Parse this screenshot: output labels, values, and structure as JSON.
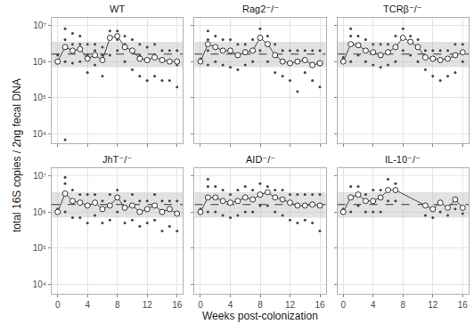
{
  "chart_data": {
    "type": "scatter",
    "log": "y",
    "grid": true,
    "x_label": "Weeks post-colonization",
    "y_label": "total 16S copies / 2ng fecal DNA",
    "xlim": [
      -0.8,
      16.8
    ],
    "xticks": [
      0,
      4,
      8,
      12,
      16
    ],
    "ylim": [
      5600,
      16000000
    ],
    "yticks": [
      {
        "value": 10000,
        "label": "10⁴"
      },
      {
        "value": 100000,
        "label": "10⁵"
      },
      {
        "value": 1000000,
        "label": "10⁶"
      },
      {
        "value": 10000000,
        "label": "10⁷"
      }
    ],
    "band": [
      700000,
      3500000
    ],
    "reference": 1600000,
    "panels": [
      {
        "title": "WT",
        "points": {
          "x": [
            0,
            0,
            1,
            1,
            1,
            1,
            2,
            2,
            2,
            3,
            3,
            3,
            4,
            4,
            4,
            5,
            5,
            5,
            6,
            6,
            6,
            7,
            7,
            7,
            8,
            8,
            8,
            9,
            9,
            9,
            10,
            10,
            10,
            11,
            11,
            11,
            12,
            12,
            12,
            13,
            13,
            13,
            14,
            14,
            14,
            15,
            15,
            15,
            16,
            16,
            16
          ],
          "values": [
            900000,
            1500000,
            7000,
            1000000,
            4000000,
            8000000,
            900000,
            3000000,
            6000000,
            1000000,
            3000000,
            5000000,
            500000,
            1500000,
            3000000,
            800000,
            2000000,
            3000000,
            400000,
            1500000,
            2500000,
            1500000,
            5000000,
            7000000,
            2000000,
            4000000,
            7000000,
            1000000,
            3000000,
            5000000,
            600000,
            2000000,
            4000000,
            400000,
            1500000,
            3000000,
            300000,
            1000000,
            2500000,
            400000,
            1500000,
            3000000,
            300000,
            1000000,
            2000000,
            300000,
            1000000,
            2000000,
            200000,
            800000,
            2000000
          ]
        },
        "median": {
          "x": [
            0,
            1,
            2,
            3,
            4,
            5,
            6,
            7,
            8,
            9,
            10,
            11,
            12,
            13,
            14,
            15,
            16
          ],
          "values": [
            1000000,
            2500000,
            2000000,
            2200000,
            1200000,
            1500000,
            1100000,
            4500000,
            5000000,
            2500000,
            2000000,
            1200000,
            1100000,
            1300000,
            1100000,
            1000000,
            1000000
          ]
        }
      },
      {
        "title": "Rag2⁻/⁻",
        "points": {
          "x": [
            0,
            0,
            1,
            1,
            1,
            1,
            2,
            2,
            2,
            3,
            3,
            3,
            4,
            4,
            4,
            5,
            5,
            5,
            6,
            6,
            6,
            7,
            7,
            7,
            8,
            8,
            8,
            9,
            9,
            9,
            10,
            10,
            10,
            11,
            11,
            11,
            12,
            12,
            12,
            13,
            13,
            13,
            14,
            14,
            14,
            15,
            15,
            15,
            16,
            16,
            16
          ],
          "values": [
            1000000,
            1200000,
            800000,
            2000000,
            4000000,
            7000000,
            1000000,
            2500000,
            5000000,
            800000,
            2000000,
            4000000,
            700000,
            2000000,
            4000000,
            600000,
            1500000,
            3000000,
            800000,
            2000000,
            3000000,
            1000000,
            2000000,
            4000000,
            2000000,
            5000000,
            8000000,
            1000000,
            3000000,
            5000000,
            500000,
            1500000,
            3000000,
            400000,
            1000000,
            2000000,
            300000,
            900000,
            2000000,
            150000,
            1000000,
            2000000,
            500000,
            1000000,
            2000000,
            300000,
            800000,
            2000000,
            200000,
            900000,
            2000000
          ]
        },
        "median": {
          "x": [
            0,
            1,
            2,
            3,
            4,
            5,
            6,
            7,
            8,
            9,
            10,
            11,
            12,
            13,
            14,
            15,
            16
          ],
          "values": [
            1000000,
            3000000,
            2500000,
            2000000,
            2000000,
            1500000,
            1800000,
            2000000,
            4500000,
            3000000,
            1500000,
            1000000,
            900000,
            1000000,
            1100000,
            800000,
            900000
          ]
        }
      },
      {
        "title": "TCRβ⁻/⁻",
        "points": {
          "x": [
            0,
            0,
            1,
            1,
            1,
            1,
            2,
            2,
            2,
            3,
            3,
            3,
            4,
            4,
            4,
            5,
            5,
            5,
            6,
            6,
            6,
            7,
            7,
            7,
            8,
            8,
            8,
            9,
            9,
            9,
            10,
            10,
            10,
            11,
            11,
            11,
            12,
            12,
            12,
            13,
            13,
            13,
            14,
            14,
            14,
            15,
            15,
            15,
            16,
            16,
            16
          ],
          "values": [
            1000000,
            1300000,
            1000000,
            3000000,
            5000000,
            8000000,
            1500000,
            3000000,
            5000000,
            1000000,
            2000000,
            4000000,
            800000,
            1800000,
            3000000,
            700000,
            1500000,
            3000000,
            800000,
            2000000,
            3000000,
            1000000,
            2500000,
            5000000,
            2000000,
            4500000,
            8000000,
            1500000,
            3500000,
            5000000,
            1000000,
            2500000,
            4000000,
            600000,
            1300000,
            2000000,
            400000,
            1200000,
            2000000,
            300000,
            1000000,
            2000000,
            400000,
            1200000,
            2000000,
            500000,
            1500000,
            3000000,
            1000000,
            1800000,
            3000000
          ]
        },
        "median": {
          "x": [
            0,
            1,
            2,
            3,
            4,
            5,
            6,
            7,
            8,
            9,
            10,
            11,
            12,
            13,
            14,
            15,
            16
          ],
          "values": [
            1000000,
            3000000,
            2800000,
            2000000,
            1800000,
            1500000,
            1800000,
            2500000,
            4500000,
            3500000,
            2500000,
            1300000,
            1200000,
            1100000,
            1200000,
            1500000,
            1800000
          ]
        }
      },
      {
        "title": "JhT⁻/⁻",
        "points": {
          "x": [
            0,
            0,
            1,
            1,
            1,
            1,
            2,
            2,
            2,
            3,
            3,
            3,
            4,
            4,
            4,
            5,
            5,
            5,
            6,
            6,
            6,
            7,
            7,
            7,
            8,
            8,
            8,
            9,
            9,
            9,
            10,
            10,
            10,
            11,
            11,
            11,
            12,
            12,
            12,
            13,
            13,
            13,
            14,
            14,
            14,
            15,
            15,
            15,
            16,
            16,
            16
          ],
          "values": [
            1000000,
            1200000,
            1000000,
            3000000,
            6000000,
            9000000,
            700000,
            2000000,
            4000000,
            700000,
            1800000,
            3000000,
            500000,
            1500000,
            3000000,
            800000,
            1800000,
            3000000,
            500000,
            1200000,
            2000000,
            600000,
            1500000,
            3000000,
            1000000,
            2500000,
            4000000,
            500000,
            1300000,
            2000000,
            600000,
            1500000,
            3000000,
            400000,
            1000000,
            2000000,
            500000,
            1200000,
            2000000,
            600000,
            1500000,
            3000000,
            300000,
            1000000,
            2000000,
            400000,
            1200000,
            2000000,
            300000,
            900000,
            2000000
          ]
        },
        "median": {
          "x": [
            0,
            1,
            2,
            3,
            4,
            5,
            6,
            7,
            8,
            9,
            10,
            11,
            12,
            13,
            14,
            15,
            16
          ],
          "values": [
            1000000,
            3200000,
            2000000,
            1800000,
            1500000,
            1800000,
            1200000,
            1500000,
            2500000,
            1300000,
            1500000,
            1000000,
            1200000,
            1500000,
            1000000,
            1200000,
            900000
          ]
        }
      },
      {
        "title": "AID⁻/⁻",
        "points": {
          "x": [
            0,
            0,
            1,
            1,
            1,
            1,
            2,
            2,
            2,
            3,
            3,
            3,
            4,
            4,
            4,
            5,
            5,
            5,
            6,
            6,
            6,
            7,
            7,
            7,
            8,
            8,
            8,
            9,
            9,
            9,
            10,
            10,
            10,
            11,
            11,
            11,
            12,
            12,
            12,
            13,
            13,
            13,
            14,
            14,
            14,
            15,
            15,
            15,
            16,
            16,
            16
          ],
          "values": [
            1000000,
            1200000,
            1000000,
            2500000,
            5000000,
            8000000,
            1000000,
            2500000,
            5000000,
            800000,
            2000000,
            4000000,
            700000,
            1800000,
            3000000,
            800000,
            2000000,
            4000000,
            1000000,
            2500000,
            5000000,
            1000000,
            2200000,
            4000000,
            1500000,
            3000000,
            6000000,
            1500000,
            3500000,
            5000000,
            1000000,
            2500000,
            4000000,
            800000,
            2200000,
            4000000,
            600000,
            1800000,
            3000000,
            500000,
            1500000,
            3000000,
            600000,
            1500000,
            3000000,
            500000,
            1600000,
            3000000,
            300000,
            1500000,
            3000000
          ]
        },
        "median": {
          "x": [
            0,
            1,
            2,
            3,
            4,
            5,
            6,
            7,
            8,
            9,
            10,
            11,
            12,
            13,
            14,
            15,
            16
          ],
          "values": [
            1000000,
            2500000,
            2500000,
            2000000,
            1800000,
            2000000,
            2500000,
            2200000,
            3000000,
            3500000,
            2500000,
            2200000,
            1800000,
            1500000,
            1500000,
            1600000,
            1500000
          ]
        }
      },
      {
        "title": "IL-10⁻/⁻",
        "points": {
          "x": [
            0,
            0,
            1,
            1,
            1,
            2,
            2,
            2,
            3,
            3,
            3,
            4,
            4,
            4,
            5,
            5,
            5,
            6,
            6,
            6,
            7,
            7,
            7,
            11,
            11,
            12,
            12,
            13,
            13,
            14,
            14,
            15,
            15,
            16,
            16
          ],
          "values": [
            1000000,
            1200000,
            1000000,
            2500000,
            5000000,
            1500000,
            3000000,
            5000000,
            1000000,
            2000000,
            3000000,
            1000000,
            2000000,
            4000000,
            1000000,
            2500000,
            4000000,
            2000000,
            4000000,
            8000000,
            2000000,
            4000000,
            6000000,
            800000,
            1500000,
            700000,
            1200000,
            1000000,
            1800000,
            800000,
            1300000,
            1200000,
            2200000,
            900000,
            1300000
          ]
        },
        "median": {
          "x": [
            0,
            1,
            2,
            3,
            4,
            5,
            6,
            7,
            11,
            12,
            13,
            14,
            15,
            16
          ],
          "values": [
            1000000,
            2500000,
            3000000,
            2000000,
            2000000,
            2500000,
            4000000,
            4000000,
            1500000,
            1200000,
            1800000,
            1300000,
            2200000,
            1300000
          ]
        }
      }
    ]
  }
}
